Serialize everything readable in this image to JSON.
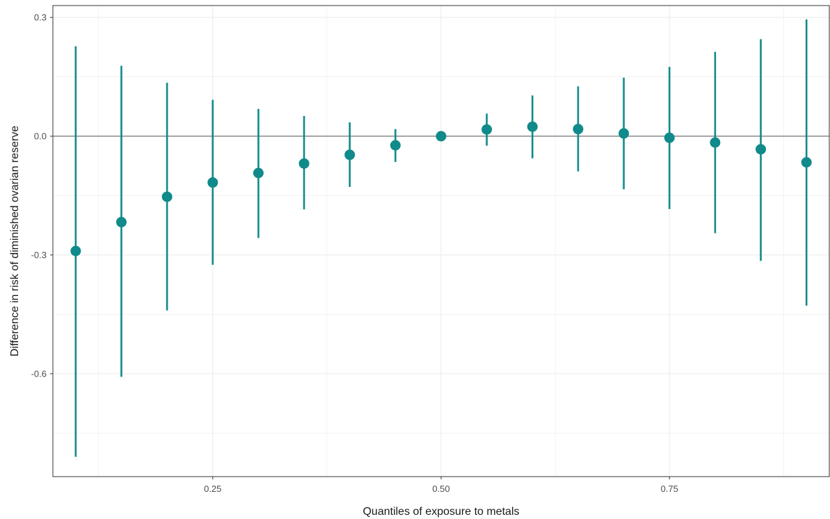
{
  "chart_data": {
    "type": "scatter",
    "subtype": "point-range",
    "title": "",
    "xlabel": "Quantiles of exposure to metals",
    "ylabel": "Difference in risk of diminished ovarian reserve",
    "xlim": [
      0.075,
      0.925
    ],
    "ylim": [
      -0.86,
      0.33
    ],
    "x_ticks": [
      0.25,
      0.5,
      0.75
    ],
    "x_tick_labels": [
      "0.25",
      "0.50",
      "0.75"
    ],
    "y_ticks": [
      -0.6,
      -0.3,
      0.0,
      0.3
    ],
    "y_tick_labels": [
      "-0.6",
      "-0.3",
      "0.0",
      "0.3"
    ],
    "reference_line_y": 0,
    "grid": true,
    "colors": {
      "point": "#108a8a",
      "reference_line": "#a6a6a6",
      "grid": "#ebebeb",
      "panel_border": "#333333"
    },
    "points": [
      {
        "x": 0.1,
        "y": -0.29,
        "lower": -0.81,
        "upper": 0.227
      },
      {
        "x": 0.15,
        "y": -0.217,
        "lower": -0.608,
        "upper": 0.178
      },
      {
        "x": 0.2,
        "y": -0.153,
        "lower": -0.44,
        "upper": 0.135
      },
      {
        "x": 0.25,
        "y": -0.117,
        "lower": -0.325,
        "upper": 0.092
      },
      {
        "x": 0.3,
        "y": -0.093,
        "lower": -0.257,
        "upper": 0.069
      },
      {
        "x": 0.35,
        "y": -0.069,
        "lower": -0.185,
        "upper": 0.051
      },
      {
        "x": 0.4,
        "y": -0.047,
        "lower": -0.128,
        "upper": 0.035
      },
      {
        "x": 0.45,
        "y": -0.023,
        "lower": -0.065,
        "upper": 0.018
      },
      {
        "x": 0.5,
        "y": 0.0,
        "lower": 0.0,
        "upper": 0.0
      },
      {
        "x": 0.55,
        "y": 0.017,
        "lower": -0.024,
        "upper": 0.057
      },
      {
        "x": 0.6,
        "y": 0.024,
        "lower": -0.056,
        "upper": 0.103
      },
      {
        "x": 0.65,
        "y": 0.018,
        "lower": -0.089,
        "upper": 0.126
      },
      {
        "x": 0.7,
        "y": 0.007,
        "lower": -0.134,
        "upper": 0.148
      },
      {
        "x": 0.75,
        "y": -0.004,
        "lower": -0.184,
        "upper": 0.175
      },
      {
        "x": 0.8,
        "y": -0.016,
        "lower": -0.245,
        "upper": 0.213
      },
      {
        "x": 0.85,
        "y": -0.033,
        "lower": -0.315,
        "upper": 0.245
      },
      {
        "x": 0.9,
        "y": -0.066,
        "lower": -0.428,
        "upper": 0.295
      }
    ]
  }
}
